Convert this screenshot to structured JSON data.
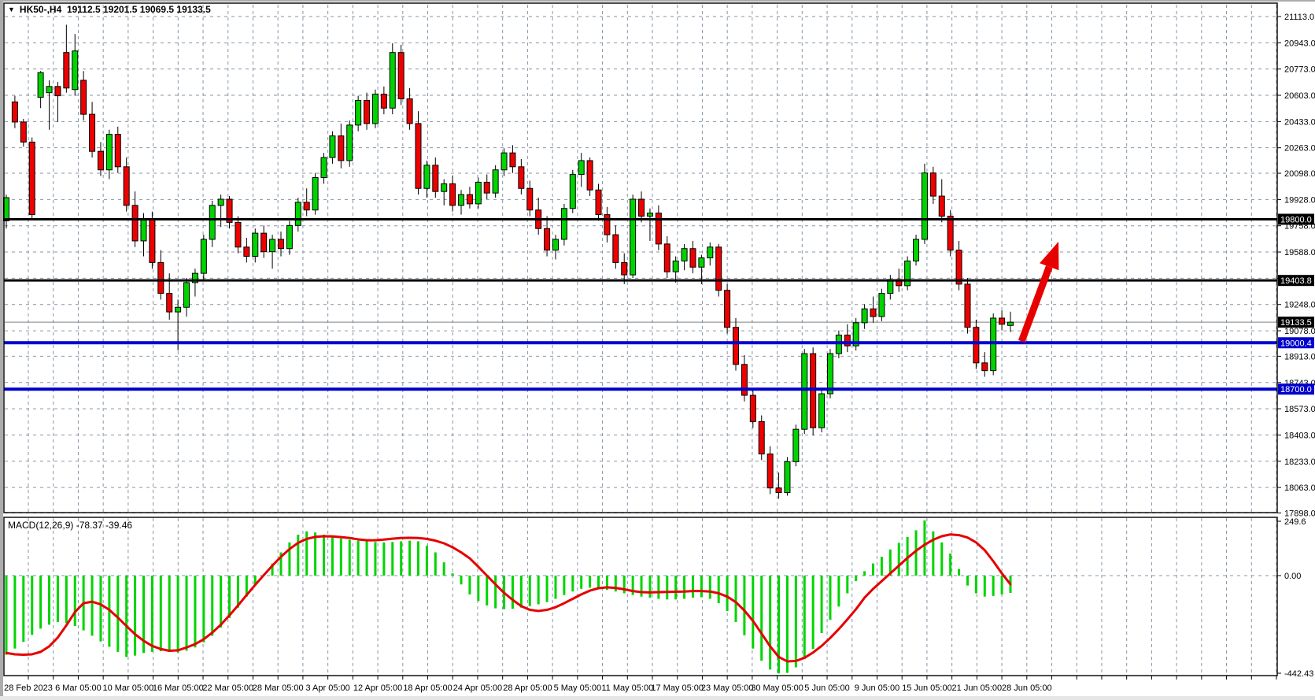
{
  "window": {
    "dropdown_glyph": "▼",
    "title": "HK50-,H4  19112.5 19201.5 19069.5 19133.5"
  },
  "indicator_label": "MACD(12,26,9) -78.37 -39.46",
  "colors": {
    "bull": "#00d400",
    "bear": "#ee0000",
    "grid": "#8696a6",
    "candle_outline": "#000000",
    "level_black": "#000000",
    "level_blue": "#0000cc",
    "current_price_line": "#808080",
    "signal_line": "#e60000",
    "arrow": "#e60000",
    "badge_text": "#ffffff"
  },
  "price_axis": {
    "ticks": [
      {
        "label": "21113.0",
        "price": 21113
      },
      {
        "label": "20943.0",
        "price": 20943
      },
      {
        "label": "20773.0",
        "price": 20773
      },
      {
        "label": "20603.0",
        "price": 20603
      },
      {
        "label": "20433.0",
        "price": 20433
      },
      {
        "label": "20263.0",
        "price": 20263
      },
      {
        "label": "20098.0",
        "price": 20098
      },
      {
        "label": "19928.0",
        "price": 19928
      },
      {
        "label": "19758.0",
        "price": 19758
      },
      {
        "label": "19588.0",
        "price": 19588
      },
      {
        "label": "",
        "price": 19418
      },
      {
        "label": "19248.0",
        "price": 19248
      },
      {
        "label": "19078.0",
        "price": 19078
      },
      {
        "label": "18913.0",
        "price": 18913
      },
      {
        "label": "18743.0",
        "price": 18743
      },
      {
        "label": "18573.0",
        "price": 18573
      },
      {
        "label": "18403.0",
        "price": 18403
      },
      {
        "label": "18233.0",
        "price": 18233
      },
      {
        "label": "18063.0",
        "price": 18063
      },
      {
        "label": "17898.0",
        "price": 17898
      }
    ],
    "badges": [
      {
        "label": "19800.0",
        "price": 19800.0,
        "color": "#000000"
      },
      {
        "label": "19403.8",
        "price": 19403.8,
        "color": "#000000"
      },
      {
        "label": "19133.5",
        "price": 19133.5,
        "color": "#000000"
      },
      {
        "label": "19000.4",
        "price": 19000.4,
        "color": "#0000cc"
      },
      {
        "label": "18700.0",
        "price": 18700.0,
        "color": "#0000cc"
      }
    ]
  },
  "macd_axis": {
    "ticks": [
      {
        "label": "249.6",
        "value": 249.6
      },
      {
        "label": "0.00",
        "value": 0
      },
      {
        "label": "-442.43",
        "value": -442.43
      }
    ]
  },
  "time_axis": {
    "labels": [
      "28 Feb 2023",
      "6 Mar 05:00",
      "10 Mar 05:00",
      "16 Mar 05:00",
      "22 Mar 05:00",
      "28 Mar 05:00",
      "3 Apr 05:00",
      "12 Apr 05:00",
      "18 Apr 05:00",
      "24 Apr 05:00",
      "28 Apr 05:00",
      "5 May 05:00",
      "11 May 05:00",
      "17 May 05:00",
      "23 May 05:00",
      "30 May 05:00",
      "5 Jun 05:00",
      "9 Jun 05:00",
      "15 Jun 05:00",
      "21 Jun 05:00",
      "28 Jun 05:00"
    ]
  },
  "chart_data": {
    "type": "candlestick",
    "symbol": "HK50-",
    "timeframe": "H4",
    "title": "HK50-,H4",
    "ohlc_current": {
      "open": 19112.5,
      "high": 19201.5,
      "low": 19069.5,
      "close": 19133.5
    },
    "ylim_main": [
      17898,
      21113
    ],
    "ylim_macd": [
      -442.43,
      249.6
    ],
    "levels": {
      "black_lines": [
        19800.0,
        19403.8
      ],
      "blue_lines": [
        19000.4,
        18700.0
      ],
      "current_price": 19133.5
    },
    "candles": [
      [
        19790,
        19960,
        19740,
        19940
      ],
      [
        20560,
        20600,
        20390,
        20430
      ],
      [
        20430,
        20450,
        20270,
        20300
      ],
      [
        20300,
        20330,
        19800,
        19830
      ],
      [
        20590,
        20760,
        20520,
        20750
      ],
      [
        20620,
        20700,
        20380,
        20660
      ],
      [
        20660,
        20690,
        20430,
        20600
      ],
      [
        20880,
        21060,
        20620,
        20650
      ],
      [
        20640,
        21000,
        20600,
        20890
      ],
      [
        20700,
        20760,
        20440,
        20480
      ],
      [
        20480,
        20560,
        20200,
        20240
      ],
      [
        20240,
        20300,
        20080,
        20120
      ],
      [
        20120,
        20380,
        20060,
        20350
      ],
      [
        20350,
        20400,
        20100,
        20140
      ],
      [
        20140,
        20200,
        19850,
        19890
      ],
      [
        19890,
        19980,
        19620,
        19660
      ],
      [
        19660,
        19840,
        19560,
        19800
      ],
      [
        19800,
        19850,
        19480,
        19520
      ],
      [
        19520,
        19600,
        19280,
        19320
      ],
      [
        19320,
        19450,
        19150,
        19200
      ],
      [
        19200,
        19280,
        18950,
        19230
      ],
      [
        19230,
        19420,
        19170,
        19390
      ],
      [
        19390,
        19480,
        19300,
        19450
      ],
      [
        19450,
        19700,
        19400,
        19670
      ],
      [
        19670,
        19920,
        19620,
        19890
      ],
      [
        19890,
        19960,
        19750,
        19930
      ],
      [
        19930,
        19950,
        19740,
        19780
      ],
      [
        19780,
        19820,
        19580,
        19620
      ],
      [
        19620,
        19680,
        19520,
        19560
      ],
      [
        19560,
        19740,
        19520,
        19710
      ],
      [
        19710,
        19760,
        19550,
        19590
      ],
      [
        19590,
        19700,
        19480,
        19670
      ],
      [
        19670,
        19720,
        19560,
        19610
      ],
      [
        19610,
        19790,
        19570,
        19760
      ],
      [
        19760,
        19940,
        19720,
        19910
      ],
      [
        19910,
        20000,
        19820,
        19860
      ],
      [
        19860,
        20100,
        19830,
        20070
      ],
      [
        20070,
        20230,
        20030,
        20200
      ],
      [
        20200,
        20370,
        20160,
        20340
      ],
      [
        20340,
        20420,
        20130,
        20180
      ],
      [
        20180,
        20440,
        20140,
        20410
      ],
      [
        20410,
        20600,
        20370,
        20570
      ],
      [
        20570,
        20620,
        20380,
        20420
      ],
      [
        20420,
        20640,
        20390,
        20610
      ],
      [
        20610,
        20660,
        20480,
        20520
      ],
      [
        20520,
        20940,
        20480,
        20880
      ],
      [
        20880,
        20930,
        20540,
        20580
      ],
      [
        20580,
        20650,
        20380,
        20420
      ],
      [
        20420,
        20500,
        19960,
        20000
      ],
      [
        20000,
        20180,
        19940,
        20150
      ],
      [
        20150,
        20200,
        19940,
        19980
      ],
      [
        19980,
        20060,
        19890,
        20030
      ],
      [
        20030,
        20080,
        19850,
        19890
      ],
      [
        19890,
        19990,
        19830,
        19960
      ],
      [
        19960,
        20010,
        19870,
        19900
      ],
      [
        19900,
        20070,
        19870,
        20040
      ],
      [
        20040,
        20090,
        19930,
        19970
      ],
      [
        19970,
        20150,
        19940,
        20120
      ],
      [
        20120,
        20260,
        20080,
        20230
      ],
      [
        20230,
        20280,
        20100,
        20140
      ],
      [
        20140,
        20190,
        19960,
        20000
      ],
      [
        20000,
        20050,
        19820,
        19860
      ],
      [
        19860,
        19940,
        19700,
        19740
      ],
      [
        19740,
        19820,
        19560,
        19600
      ],
      [
        19600,
        19700,
        19540,
        19670
      ],
      [
        19670,
        19900,
        19630,
        19870
      ],
      [
        19870,
        20120,
        19840,
        20090
      ],
      [
        20090,
        20230,
        20010,
        20180
      ],
      [
        20180,
        20200,
        19950,
        19990
      ],
      [
        19990,
        20030,
        19790,
        19830
      ],
      [
        19830,
        19880,
        19650,
        19700
      ],
      [
        19700,
        19760,
        19480,
        19520
      ],
      [
        19520,
        19580,
        19380,
        19440
      ],
      [
        19440,
        19960,
        19420,
        19930
      ],
      [
        19930,
        19980,
        19780,
        19820
      ],
      [
        19820,
        19870,
        19660,
        19840
      ],
      [
        19840,
        19890,
        19600,
        19640
      ],
      [
        19640,
        19690,
        19420,
        19460
      ],
      [
        19460,
        19560,
        19390,
        19530
      ],
      [
        19530,
        19640,
        19470,
        19610
      ],
      [
        19610,
        19660,
        19450,
        19490
      ],
      [
        19490,
        19570,
        19380,
        19550
      ],
      [
        19550,
        19650,
        19500,
        19620
      ],
      [
        19620,
        19640,
        19300,
        19340
      ],
      [
        19340,
        19380,
        19060,
        19100
      ],
      [
        19100,
        19160,
        18820,
        18860
      ],
      [
        18860,
        18920,
        18620,
        18660
      ],
      [
        18660,
        18700,
        18450,
        18490
      ],
      [
        18490,
        18530,
        18240,
        18280
      ],
      [
        18280,
        18330,
        18020,
        18060
      ],
      [
        18060,
        18160,
        17990,
        18030
      ],
      [
        18030,
        18260,
        18010,
        18230
      ],
      [
        18230,
        18470,
        18200,
        18440
      ],
      [
        18440,
        18960,
        18410,
        18930
      ],
      [
        18930,
        18970,
        18400,
        18450
      ],
      [
        18450,
        18700,
        18420,
        18670
      ],
      [
        18670,
        18960,
        18640,
        18930
      ],
      [
        18930,
        19080,
        18900,
        19050
      ],
      [
        19050,
        19120,
        18940,
        18980
      ],
      [
        18980,
        19160,
        18950,
        19130
      ],
      [
        19130,
        19250,
        19090,
        19220
      ],
      [
        19220,
        19300,
        19130,
        19170
      ],
      [
        19170,
        19350,
        19140,
        19320
      ],
      [
        19320,
        19440,
        19280,
        19410
      ],
      [
        19410,
        19480,
        19330,
        19370
      ],
      [
        19370,
        19560,
        19340,
        19530
      ],
      [
        19530,
        19700,
        19500,
        19670
      ],
      [
        19670,
        20160,
        19640,
        20100
      ],
      [
        20100,
        20140,
        19900,
        19950
      ],
      [
        19950,
        20060,
        19780,
        19820
      ],
      [
        19820,
        19860,
        19560,
        19600
      ],
      [
        19600,
        19660,
        19340,
        19380
      ],
      [
        19380,
        19420,
        19060,
        19100
      ],
      [
        19100,
        19150,
        18830,
        18870
      ],
      [
        18870,
        18940,
        18780,
        18820
      ],
      [
        18820,
        19190,
        18790,
        19160
      ],
      [
        19160,
        19210,
        19080,
        19120
      ],
      [
        19112.5,
        19201.5,
        19069.5,
        19133.5
      ]
    ],
    "macd": {
      "params": "12,26,9",
      "current_main": -78.37,
      "current_signal": -39.46,
      "histogram": [
        -358,
        -330,
        -300,
        -268,
        -240,
        -222,
        -210,
        -215,
        -228,
        -248,
        -272,
        -298,
        -322,
        -345,
        -368,
        -362,
        -350,
        -345,
        -342,
        -345,
        -348,
        -340,
        -325,
        -302,
        -272,
        -235,
        -192,
        -145,
        -95,
        -45,
        5,
        55,
        105,
        150,
        185,
        200,
        195,
        185,
        175,
        168,
        162,
        158,
        155,
        152,
        150,
        152,
        155,
        158,
        155,
        135,
        105,
        60,
        10,
        -40,
        -85,
        -115,
        -135,
        -148,
        -152,
        -150,
        -145,
        -138,
        -130,
        -120,
        -105,
        -88,
        -72,
        -60,
        -55,
        -58,
        -65,
        -72,
        -80,
        -88,
        -95,
        -100,
        -105,
        -108,
        -108,
        -105,
        -100,
        -98,
        -105,
        -125,
        -160,
        -210,
        -270,
        -330,
        -385,
        -425,
        -442.43,
        -440,
        -415,
        -378,
        -332,
        -260,
        -200,
        -140,
        -80,
        -25,
        20,
        55,
        85,
        118,
        148,
        175,
        205,
        249.6,
        200,
        150,
        100,
        30,
        -45,
        -80,
        -95,
        -92,
        -85,
        -78.37
      ],
      "signal": [
        -350,
        -356,
        -358,
        -356,
        -345,
        -320,
        -280,
        -225,
        -165,
        -125,
        -118,
        -130,
        -155,
        -190,
        -228,
        -265,
        -295,
        -318,
        -332,
        -340,
        -338,
        -325,
        -310,
        -288,
        -258,
        -222,
        -180,
        -135,
        -88,
        -42,
        2,
        45,
        85,
        120,
        148,
        166,
        175,
        178,
        177,
        174,
        170,
        164,
        160,
        160,
        163,
        167,
        170,
        171,
        170,
        166,
        158,
        146,
        128,
        105,
        78,
        40,
        0,
        -40,
        -78,
        -110,
        -138,
        -155,
        -160,
        -155,
        -143,
        -125,
        -105,
        -85,
        -68,
        -57,
        -53,
        -56,
        -62,
        -70,
        -75,
        -76,
        -75,
        -74,
        -73,
        -72,
        -70,
        -70,
        -72,
        -80,
        -95,
        -120,
        -158,
        -205,
        -262,
        -320,
        -368,
        -388,
        -386,
        -372,
        -348,
        -318,
        -282,
        -242,
        -198,
        -152,
        -100,
        -60,
        -25,
        10,
        45,
        80,
        112,
        140,
        162,
        178,
        186,
        183,
        172,
        150,
        115,
        65,
        10,
        -39.46
      ]
    },
    "annotation_arrow": {
      "from": {
        "index": 118.3,
        "price": 19010
      },
      "to": {
        "index": 122.6,
        "price": 19655
      }
    }
  }
}
